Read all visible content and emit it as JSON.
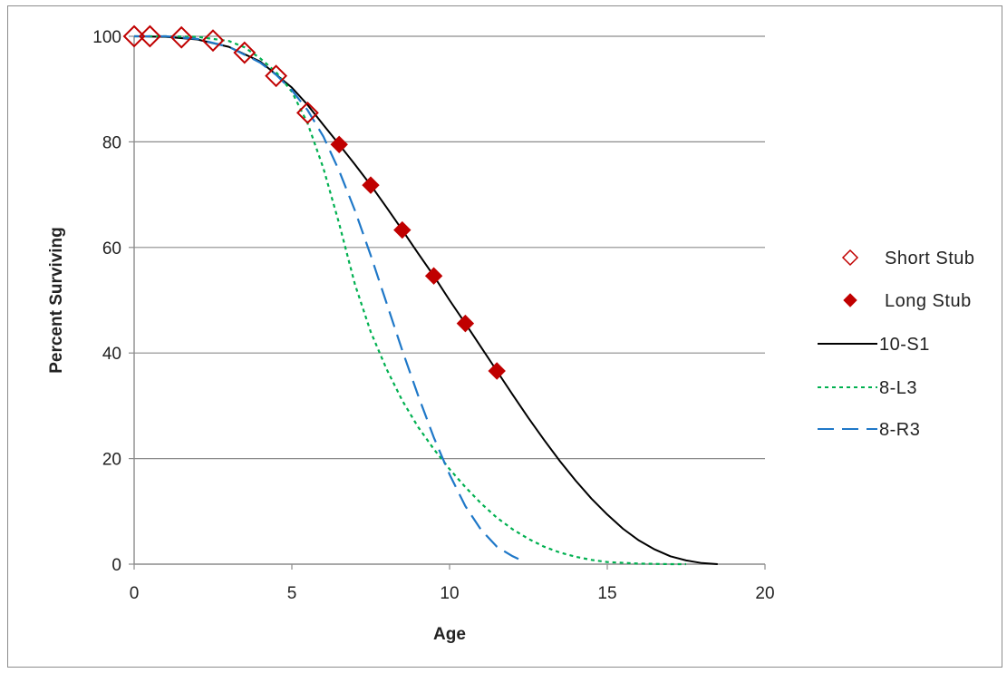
{
  "chart_data": {
    "type": "scatter",
    "title": "",
    "xlabel": "Age",
    "ylabel": "Percent Surviving",
    "xlim": [
      0,
      20
    ],
    "ylim": [
      0,
      100
    ],
    "x_ticks": [
      0,
      5,
      10,
      15,
      20
    ],
    "y_ticks": [
      0,
      20,
      40,
      60,
      80,
      100
    ],
    "grid": "horizontal",
    "legend_position": "right",
    "series": [
      {
        "name": "Short Stub",
        "kind": "marker",
        "marker": "diamond-open",
        "color": "#c00000",
        "points": [
          [
            0,
            100
          ],
          [
            0.5,
            100
          ],
          [
            1.5,
            99.8
          ],
          [
            2.5,
            99.2
          ],
          [
            3.5,
            96.9
          ],
          [
            4.5,
            92.5
          ],
          [
            5.5,
            85.5
          ]
        ]
      },
      {
        "name": "Long Stub",
        "kind": "marker",
        "marker": "diamond-filled",
        "color": "#c00000",
        "points": [
          [
            6.5,
            79.5
          ],
          [
            7.5,
            71.8
          ],
          [
            8.5,
            63.3
          ],
          [
            9.5,
            54.6
          ],
          [
            10.5,
            45.6
          ],
          [
            11.5,
            36.6
          ]
        ]
      },
      {
        "name": "10-S1",
        "kind": "line",
        "dash": "solid",
        "color": "#000000",
        "points": [
          [
            0,
            100
          ],
          [
            1,
            99.9
          ],
          [
            2,
            99.4
          ],
          [
            3,
            98.0
          ],
          [
            4,
            95.2
          ],
          [
            5,
            90.3
          ],
          [
            5.5,
            87.0
          ],
          [
            6,
            83.2
          ],
          [
            6.5,
            79.5
          ],
          [
            7,
            75.7
          ],
          [
            7.5,
            71.8
          ],
          [
            8,
            67.6
          ],
          [
            8.5,
            63.3
          ],
          [
            9,
            58.9
          ],
          [
            9.5,
            54.6
          ],
          [
            10,
            50.0
          ],
          [
            10.5,
            45.6
          ],
          [
            11,
            41.1
          ],
          [
            11.5,
            36.6
          ],
          [
            12,
            32.1
          ],
          [
            12.5,
            27.7
          ],
          [
            13,
            23.5
          ],
          [
            13.5,
            19.5
          ],
          [
            14,
            15.8
          ],
          [
            14.5,
            12.4
          ],
          [
            15,
            9.4
          ],
          [
            15.5,
            6.7
          ],
          [
            16,
            4.5
          ],
          [
            16.5,
            2.8
          ],
          [
            17,
            1.5
          ],
          [
            17.5,
            0.7
          ],
          [
            18,
            0.2
          ],
          [
            18.5,
            0
          ]
        ]
      },
      {
        "name": "8-L3",
        "kind": "line",
        "dash": "dotted",
        "color": "#00b050",
        "points": [
          [
            0,
            100
          ],
          [
            1,
            100
          ],
          [
            2,
            99.9
          ],
          [
            3,
            99.1
          ],
          [
            3.5,
            97.9
          ],
          [
            4,
            95.8
          ],
          [
            4.5,
            93.2
          ],
          [
            5,
            89.5
          ],
          [
            5.5,
            83.5
          ],
          [
            6,
            75.0
          ],
          [
            6.5,
            64.5
          ],
          [
            7,
            53.0
          ],
          [
            7.5,
            44.0
          ],
          [
            8,
            37.0
          ],
          [
            8.5,
            31.0
          ],
          [
            9,
            26.0
          ],
          [
            9.5,
            21.8
          ],
          [
            10,
            18.0
          ],
          [
            10.5,
            14.6
          ],
          [
            11,
            11.5
          ],
          [
            11.5,
            8.8
          ],
          [
            12,
            6.6
          ],
          [
            12.5,
            4.8
          ],
          [
            13,
            3.3
          ],
          [
            13.5,
            2.2
          ],
          [
            14,
            1.4
          ],
          [
            14.5,
            0.8
          ],
          [
            15,
            0.4
          ],
          [
            16,
            0.1
          ],
          [
            17,
            0
          ],
          [
            17.5,
            0
          ]
        ]
      },
      {
        "name": "8-R3",
        "kind": "line",
        "dash": "dashed",
        "color": "#1f78c8",
        "points": [
          [
            0,
            100
          ],
          [
            1,
            100
          ],
          [
            2,
            99.5
          ],
          [
            3,
            98.0
          ],
          [
            4,
            95.0
          ],
          [
            4.5,
            92.7
          ],
          [
            5,
            89.8
          ],
          [
            5.5,
            86.0
          ],
          [
            6,
            81.0
          ],
          [
            6.5,
            74.5
          ],
          [
            7,
            67.0
          ],
          [
            7.5,
            58.5
          ],
          [
            8,
            49.5
          ],
          [
            8.5,
            40.5
          ],
          [
            9,
            32.0
          ],
          [
            9.5,
            24.0
          ],
          [
            10,
            17.0
          ],
          [
            10.5,
            11.0
          ],
          [
            11,
            6.5
          ],
          [
            11.5,
            3.3
          ],
          [
            12,
            1.5
          ],
          [
            12.4,
            0.4
          ]
        ]
      }
    ]
  }
}
